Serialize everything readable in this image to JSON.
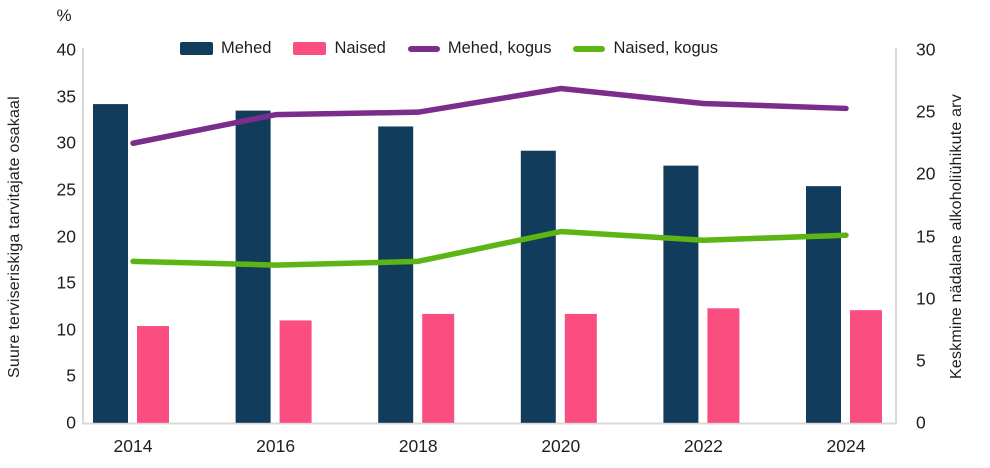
{
  "chart_data": {
    "type": "combo-bar-line",
    "categories": [
      "2014",
      "2016",
      "2018",
      "2020",
      "2022",
      "2024"
    ],
    "series": [
      {
        "name": "Mehed",
        "type": "bar",
        "axis": "left",
        "color": "#123c5c",
        "values": [
          34.2,
          33.5,
          31.8,
          29.2,
          27.6,
          25.4
        ]
      },
      {
        "name": "Naised",
        "type": "bar",
        "axis": "left",
        "color": "#fa4d80",
        "values": [
          10.4,
          11.0,
          11.7,
          11.7,
          12.3,
          12.1
        ]
      },
      {
        "name": "Mehed, kogus",
        "type": "line",
        "axis": "right",
        "color": "#7b2d8b",
        "values": [
          22.5,
          24.8,
          25.0,
          26.9,
          25.7,
          25.3
        ]
      },
      {
        "name": "Naised, kogus",
        "type": "line",
        "axis": "right",
        "color": "#5cb513",
        "values": [
          13.0,
          12.7,
          13.0,
          15.4,
          14.7,
          15.1
        ]
      }
    ],
    "left_axis": {
      "unit": "%",
      "label": "Suure terviseriskiga tarvitajate osakaal",
      "min": 0,
      "max": 40,
      "ticks": [
        0,
        5,
        10,
        15,
        20,
        25,
        30,
        35,
        40
      ]
    },
    "right_axis": {
      "label": "Keskmine nädalane alkoholiühikute arv",
      "min": 0,
      "max": 30,
      "ticks": [
        0,
        5,
        10,
        15,
        20,
        25,
        30
      ]
    },
    "legend_position": "top",
    "grid": false,
    "axis_line_color": "#d9d9d9",
    "text_color": "#1f1f1f",
    "background_color": "#ffffff"
  }
}
